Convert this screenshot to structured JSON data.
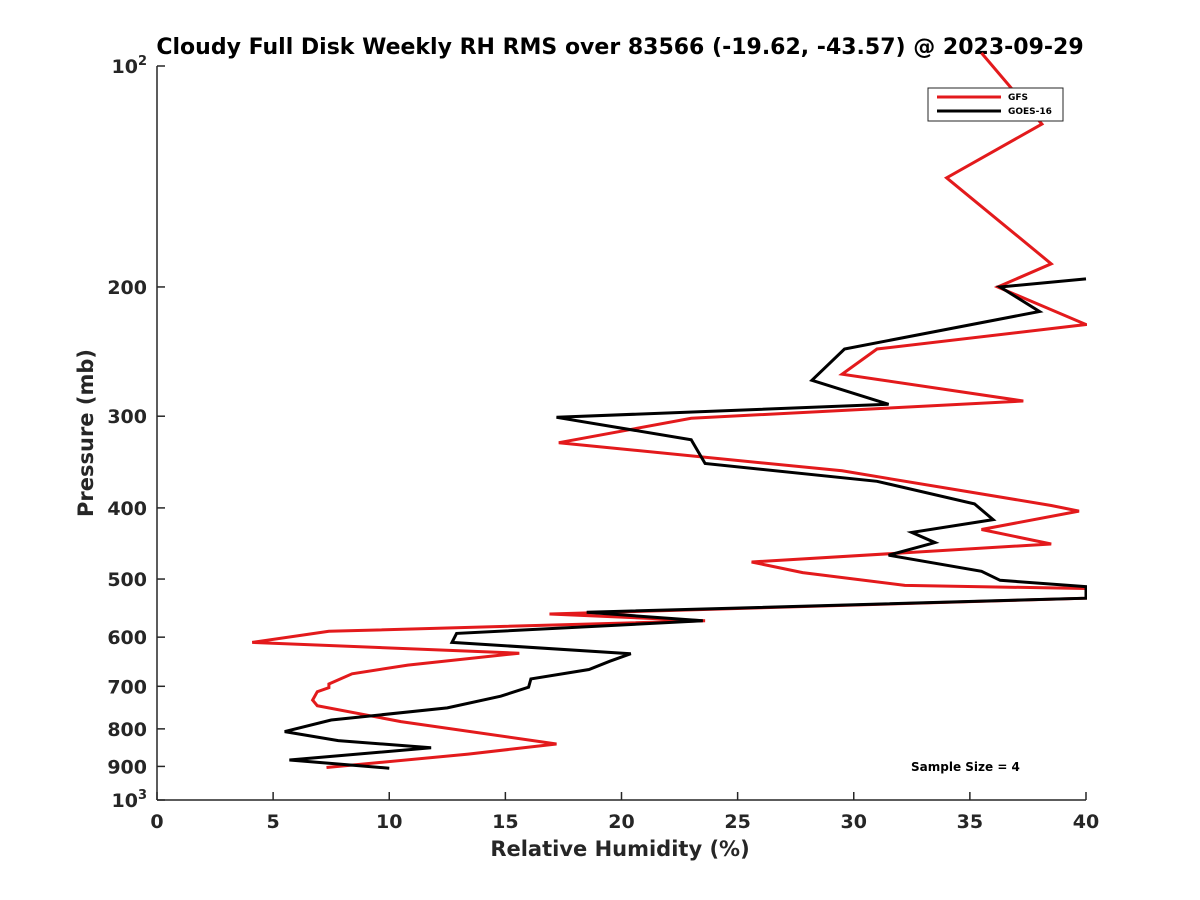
{
  "chart_data": {
    "type": "line",
    "title": "Cloudy Full Disk Weekly RH RMS over 83566 (-19.62, -43.57) @ 2023-09-29",
    "xlabel": "Relative Humidity (%)",
    "ylabel": "Pressure (mb)",
    "xlim": [
      0,
      40
    ],
    "ylim": [
      100,
      1000
    ],
    "y_scale": "log",
    "y_reversed": true,
    "x_ticks": [
      "0",
      "5",
      "10",
      "15",
      "20",
      "25",
      "30",
      "35",
      "40"
    ],
    "y_ticks": [
      {
        "value": 100,
        "base": "10",
        "exp": "2"
      },
      {
        "value": 200,
        "label": "200"
      },
      {
        "value": 300,
        "label": "300"
      },
      {
        "value": 400,
        "label": "400"
      },
      {
        "value": 500,
        "label": "500"
      },
      {
        "value": 600,
        "label": "600"
      },
      {
        "value": 700,
        "label": "700"
      },
      {
        "value": 800,
        "label": "800"
      },
      {
        "value": 900,
        "label": "900"
      },
      {
        "value": 1000,
        "base": "10",
        "exp": "3"
      }
    ],
    "grid": false,
    "legend_position": "top-right",
    "series": [
      {
        "name": "GFS",
        "color": "#e31a1c",
        "points": [
          [
            35.5,
            96
          ],
          [
            38.1,
            120
          ],
          [
            34.0,
            142
          ],
          [
            38.5,
            186
          ],
          [
            36.2,
            200
          ],
          [
            40.0,
            225
          ],
          [
            31.0,
            243
          ],
          [
            29.5,
            263
          ],
          [
            37.3,
            286
          ],
          [
            23.0,
            302
          ],
          [
            17.3,
            326
          ],
          [
            29.5,
            356
          ],
          [
            35.1,
            381
          ],
          [
            38.5,
            397
          ],
          [
            39.7,
            404
          ],
          [
            35.5,
            428
          ],
          [
            38.5,
            448
          ],
          [
            25.6,
            474
          ],
          [
            27.8,
            490
          ],
          [
            32.2,
            510
          ],
          [
            40.0,
            515
          ],
          [
            40.0,
            531
          ],
          [
            16.9,
            558
          ],
          [
            23.6,
            570
          ],
          [
            7.4,
            589
          ],
          [
            4.1,
            610
          ],
          [
            15.6,
            631
          ],
          [
            10.8,
            655
          ],
          [
            8.4,
            673
          ],
          [
            7.4,
            695
          ],
          [
            7.4,
            703
          ],
          [
            6.9,
            712
          ],
          [
            6.7,
            731
          ],
          [
            6.9,
            744
          ],
          [
            10.5,
            782
          ],
          [
            17.2,
            839
          ],
          [
            13.4,
            866
          ],
          [
            7.3,
            903
          ]
        ]
      },
      {
        "name": "GOES-16",
        "color": "#000000",
        "points": [
          [
            40.0,
            195
          ],
          [
            36.3,
            200
          ],
          [
            38.0,
            216
          ],
          [
            29.6,
            243
          ],
          [
            28.2,
            268
          ],
          [
            31.5,
            289
          ],
          [
            17.2,
            301
          ],
          [
            23.0,
            323
          ],
          [
            23.2,
            331
          ],
          [
            23.6,
            348
          ],
          [
            31.0,
            368
          ],
          [
            35.2,
            395
          ],
          [
            36.0,
            415
          ],
          [
            32.5,
            432
          ],
          [
            33.5,
            446
          ],
          [
            31.5,
            464
          ],
          [
            35.5,
            488
          ],
          [
            36.3,
            502
          ],
          [
            40.0,
            512
          ],
          [
            40.0,
            531
          ],
          [
            18.5,
            555
          ],
          [
            23.5,
            570
          ],
          [
            12.9,
            593
          ],
          [
            12.7,
            610
          ],
          [
            20.4,
            632
          ],
          [
            19.5,
            647
          ],
          [
            18.6,
            664
          ],
          [
            16.1,
            684
          ],
          [
            16.0,
            702
          ],
          [
            14.8,
            722
          ],
          [
            12.5,
            749
          ],
          [
            7.5,
            778
          ],
          [
            5.5,
            807
          ],
          [
            7.8,
            830
          ],
          [
            11.8,
            849
          ],
          [
            5.7,
            882
          ],
          [
            10.0,
            905
          ]
        ]
      }
    ],
    "annotation": "Sample Size = 4"
  }
}
